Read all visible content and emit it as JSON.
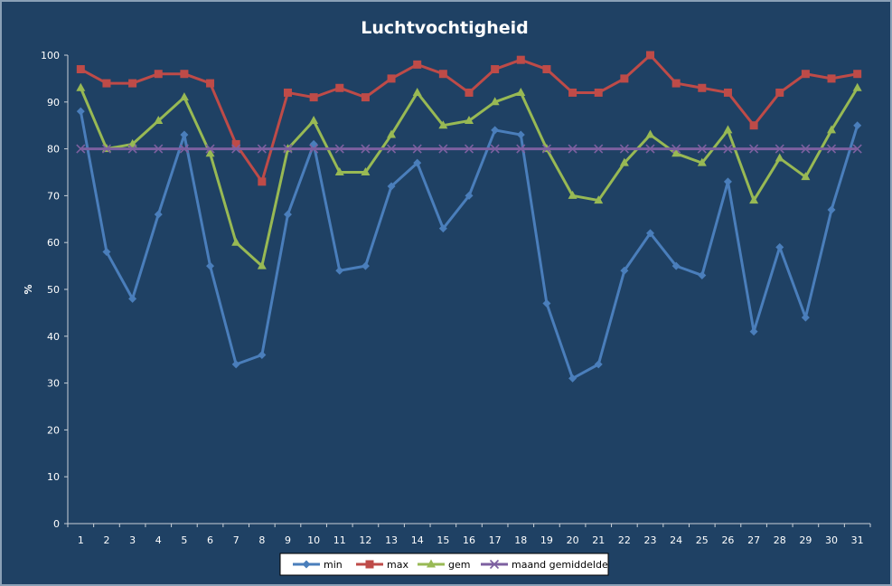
{
  "chart_data": {
    "type": "line",
    "title": "Luchtvochtigheid",
    "xlabel": "",
    "ylabel": "%",
    "ylim": [
      0,
      100
    ],
    "yticks": [
      0,
      10,
      20,
      30,
      40,
      50,
      60,
      70,
      80,
      90,
      100
    ],
    "categories": [
      "1",
      "2",
      "3",
      "4",
      "5",
      "6",
      "7",
      "8",
      "9",
      "10",
      "11",
      "12",
      "13",
      "14",
      "15",
      "16",
      "17",
      "18",
      "19",
      "20",
      "21",
      "22",
      "23",
      "24",
      "25",
      "26",
      "27",
      "28",
      "29",
      "30",
      "31"
    ],
    "grid": false,
    "legend_position": "bottom",
    "series": [
      {
        "name": "min",
        "color": "#4a7ebb",
        "marker": "diamond",
        "values": [
          88,
          58,
          48,
          66,
          83,
          55,
          34,
          36,
          66,
          81,
          54,
          55,
          72,
          77,
          63,
          70,
          84,
          83,
          47,
          31,
          34,
          54,
          62,
          55,
          53,
          73,
          41,
          59,
          44,
          67,
          85
        ]
      },
      {
        "name": "max",
        "color": "#be4b48",
        "marker": "square",
        "values": [
          97,
          94,
          94,
          96,
          96,
          94,
          81,
          73,
          92,
          91,
          93,
          91,
          95,
          98,
          96,
          92,
          97,
          99,
          97,
          92,
          92,
          95,
          100,
          94,
          93,
          92,
          85,
          92,
          96,
          95,
          96
        ]
      },
      {
        "name": "gem",
        "color": "#98b954",
        "marker": "triangle",
        "values": [
          93,
          80,
          81,
          86,
          91,
          79,
          60,
          55,
          80,
          86,
          75,
          75,
          83,
          92,
          85,
          86,
          90,
          92,
          80,
          70,
          69,
          77,
          83,
          79,
          77,
          84,
          69,
          78,
          74,
          84,
          93
        ]
      },
      {
        "name": "maand gemiddelde",
        "color": "#7d60a0",
        "marker": "x",
        "values": [
          80,
          80,
          80,
          80,
          80,
          80,
          80,
          80,
          80,
          80,
          80,
          80,
          80,
          80,
          80,
          80,
          80,
          80,
          80,
          80,
          80,
          80,
          80,
          80,
          80,
          80,
          80,
          80,
          80,
          80,
          80
        ]
      }
    ]
  }
}
